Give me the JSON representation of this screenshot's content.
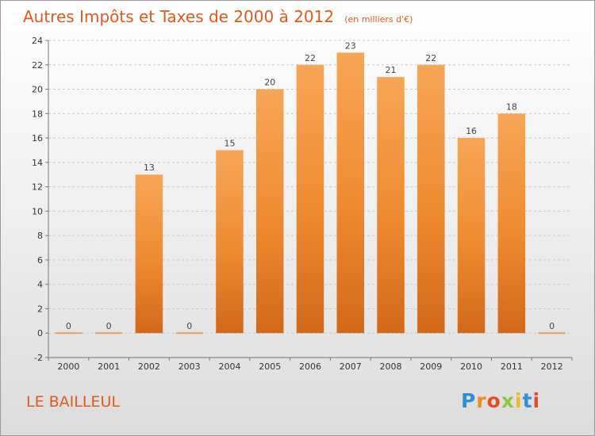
{
  "chart_data": {
    "type": "bar",
    "title": "Autres Impôts et Taxes de 2000 à 2012",
    "subtitle": "(en milliers d'€)",
    "categories": [
      "2000",
      "2001",
      "2002",
      "2003",
      "2004",
      "2005",
      "2006",
      "2007",
      "2008",
      "2009",
      "2010",
      "2011",
      "2012"
    ],
    "values": [
      0,
      0,
      13,
      0,
      15,
      20,
      22,
      23,
      21,
      22,
      16,
      18,
      0
    ],
    "data_labels": [
      "0",
      "0",
      "13",
      "0",
      "15",
      "20",
      "22",
      "23",
      "21",
      "22",
      "16",
      "18",
      "0"
    ],
    "ylim": [
      -2,
      24
    ],
    "yticks": [
      -2,
      0,
      2,
      4,
      6,
      8,
      10,
      12,
      14,
      16,
      18,
      20,
      22,
      24
    ],
    "ytick_labels": [
      "-2",
      "0",
      "2",
      "4",
      "6",
      "8",
      "10",
      "12",
      "14",
      "16",
      "18",
      "20",
      "22",
      "24"
    ],
    "grid": "horizontal dashed",
    "bar_color": "#f0882e",
    "zero_line_color": "#e8a060"
  },
  "footer": {
    "town": "LE BAILLEUL",
    "logo_letters": [
      "P",
      "r",
      "o",
      "x",
      "i",
      "t",
      "i"
    ]
  }
}
